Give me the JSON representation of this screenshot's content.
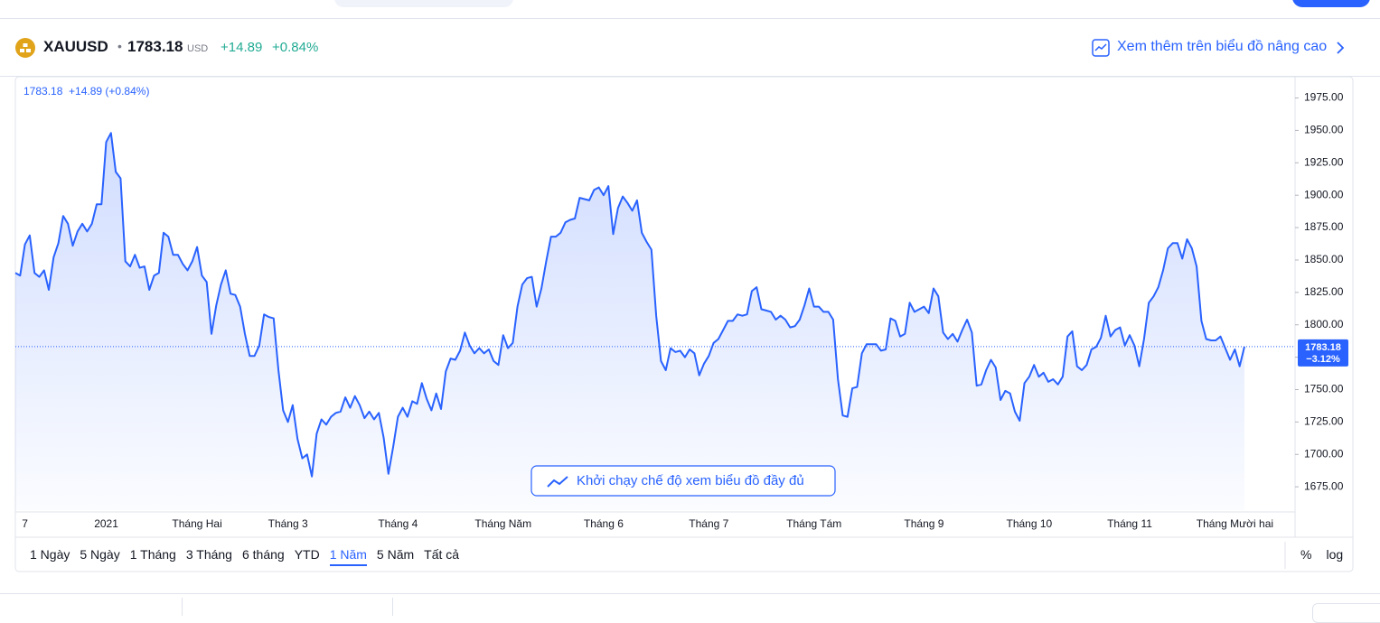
{
  "header": {
    "symbol": "XAUUSD",
    "price": "1783.18",
    "currency": "USD",
    "change": "+14.89",
    "change_percent": "+0.84%",
    "advanced_link": "Xem thêm trên biểu đồ nâng cao"
  },
  "chart_data": {
    "type": "line",
    "legend_text": "1783.18  +14.89 (+0.84%)",
    "color": "#2962ff",
    "categories": [
      null,
      null,
      "7",
      null,
      null,
      null,
      null,
      null,
      null,
      null,
      null,
      null,
      null,
      null,
      null,
      null,
      null,
      null,
      null,
      "2021",
      null,
      null,
      null,
      null,
      null,
      null,
      null,
      null,
      null,
      null,
      null,
      null,
      null,
      null,
      null,
      null,
      null,
      null,
      "Tháng Hai",
      null,
      null,
      null,
      null,
      null,
      null,
      null,
      null,
      null,
      null,
      null,
      null,
      null,
      null,
      null,
      null,
      null,
      null,
      "Tháng 3",
      null,
      null,
      null,
      null,
      null,
      null,
      null,
      null,
      null,
      null,
      null,
      null,
      null,
      null,
      null,
      null,
      null,
      null,
      null,
      null,
      null,
      null,
      "Tháng 4",
      null,
      null,
      null,
      null,
      null,
      null,
      null,
      null,
      null,
      null,
      null,
      null,
      null,
      null,
      null,
      null,
      null,
      null,
      null,
      null,
      null,
      "Tháng Năm",
      null,
      null,
      null,
      null,
      null,
      null,
      null,
      null,
      null,
      null,
      null,
      null,
      null,
      null,
      null,
      null,
      null,
      null,
      null,
      null,
      "Tháng 6",
      null,
      null,
      null,
      null,
      null,
      null,
      null,
      null,
      null,
      null,
      null,
      null,
      null,
      null,
      null,
      null,
      null,
      null,
      null,
      null,
      null,
      "Tháng 7",
      null,
      null,
      null,
      null,
      null,
      null,
      null,
      null,
      null,
      null,
      null,
      null,
      null,
      null,
      null,
      null,
      null,
      null,
      null,
      null,
      null,
      "Tháng Tám",
      null,
      null,
      null,
      null,
      null,
      null,
      null,
      null,
      null,
      null,
      null,
      null,
      null,
      null,
      null,
      null,
      null,
      null,
      null,
      null,
      null,
      null,
      "Tháng 9",
      null,
      null,
      null,
      null,
      null,
      null,
      null,
      null,
      null,
      null,
      null,
      null,
      null,
      null,
      null,
      null,
      null,
      null,
      null,
      null,
      null,
      "Tháng 10",
      null,
      null,
      null,
      null,
      null,
      null,
      null,
      null,
      null,
      null,
      null,
      null,
      null,
      null,
      null,
      null,
      null,
      null,
      null,
      null,
      "Tháng 11",
      null,
      null,
      null,
      null,
      null,
      null,
      null,
      null,
      null,
      null,
      null,
      null,
      null,
      null,
      null,
      null,
      null,
      null,
      null,
      null,
      null,
      "Tháng Mười hai",
      null,
      null
    ],
    "values": [
      1840,
      1838,
      1862,
      1869,
      1840,
      1837,
      1842,
      1827,
      1852,
      1863,
      1884,
      1878,
      1861,
      1872,
      1878,
      1872,
      1878,
      1893,
      1893,
      1941,
      1948,
      1918,
      1913,
      1849,
      1845,
      1854,
      1844,
      1845,
      1827,
      1838,
      1840,
      1871,
      1868,
      1854,
      1854,
      1847,
      1842,
      1849,
      1860,
      1838,
      1833,
      1793,
      1815,
      1831,
      1842,
      1824,
      1823,
      1814,
      1793,
      1776,
      1776,
      1784,
      1808,
      1806,
      1805,
      1765,
      1734,
      1725,
      1738,
      1712,
      1697,
      1700,
      1683,
      1716,
      1727,
      1723,
      1729,
      1732,
      1733,
      1744,
      1736,
      1745,
      1738,
      1728,
      1733,
      1727,
      1732,
      1713,
      1685,
      1706,
      1729,
      1736,
      1729,
      1741,
      1739,
      1755,
      1743,
      1734,
      1747,
      1735,
      1764,
      1774,
      1773,
      1780,
      1794,
      1784,
      1778,
      1782,
      1778,
      1781,
      1772,
      1769,
      1792,
      1782,
      1786,
      1814,
      1831,
      1836,
      1837,
      1814,
      1828,
      1849,
      1868,
      1868,
      1871,
      1879,
      1881,
      1882,
      1898,
      1897,
      1896,
      1904,
      1906,
      1900,
      1907,
      1870,
      1890,
      1899,
      1894,
      1888,
      1896,
      1871,
      1864,
      1858,
      1807,
      1772,
      1765,
      1782,
      1779,
      1780,
      1775,
      1781,
      1778,
      1761,
      1770,
      1776,
      1786,
      1789,
      1796,
      1803,
      1803,
      1808,
      1807,
      1808,
      1826,
      1829,
      1812,
      1811,
      1810,
      1804,
      1807,
      1804,
      1798,
      1799,
      1804,
      1815,
      1828,
      1814,
      1814,
      1810,
      1810,
      1804,
      1758,
      1730,
      1729,
      1751,
      1752,
      1778,
      1785,
      1785,
      1785,
      1780,
      1781,
      1805,
      1803,
      1791,
      1793,
      1817,
      1810,
      1812,
      1814,
      1809,
      1828,
      1822,
      1794,
      1789,
      1793,
      1787,
      1796,
      1804,
      1794,
      1753,
      1754,
      1765,
      1773,
      1767,
      1742,
      1749,
      1747,
      1733,
      1726,
      1755,
      1760,
      1769,
      1760,
      1763,
      1756,
      1758,
      1754,
      1760,
      1791,
      1795,
      1768,
      1765,
      1769,
      1781,
      1783,
      1790,
      1807,
      1791,
      1796,
      1798,
      1784,
      1792,
      1784,
      1768,
      1789,
      1817,
      1822,
      1829,
      1842,
      1859,
      1863,
      1863,
      1851,
      1866,
      1859,
      1845,
      1803,
      1789,
      1788,
      1788,
      1791,
      1782,
      1773,
      1781,
      1768,
      1783.18
    ],
    "last_change_label": "−3.12%",
    "ylim": [
      1657,
      1990
    ],
    "yticks": [
      {
        "value": 1675,
        "label": "1675.00"
      },
      {
        "value": 1700,
        "label": "1700.00"
      },
      {
        "value": 1725,
        "label": "1725.00"
      },
      {
        "value": 1750,
        "label": "1750.00"
      },
      {
        "value": 1775,
        "label": "1775.00"
      },
      {
        "value": 1800,
        "label": "1800.00"
      },
      {
        "value": 1825,
        "label": "1825.00"
      },
      {
        "value": 1850,
        "label": "1850.00"
      },
      {
        "value": 1875,
        "label": "1875.00"
      },
      {
        "value": 1900,
        "label": "1900.00"
      },
      {
        "value": 1925,
        "label": "1925.00"
      },
      {
        "value": 1950,
        "label": "1950.00"
      },
      {
        "value": 1975,
        "label": "1975.00"
      }
    ],
    "grid": false,
    "launch_button": "Khởi chạy chế độ xem biểu đồ đầy đủ"
  },
  "toolbar": {
    "ranges": [
      "1 Ngày",
      "5 Ngày",
      "1 Tháng",
      "3 Tháng",
      "6 tháng",
      "YTD",
      "1 Năm",
      "5 Năm",
      "Tất cả"
    ],
    "selected": 6,
    "scale_buttons": [
      "%",
      "log"
    ]
  }
}
